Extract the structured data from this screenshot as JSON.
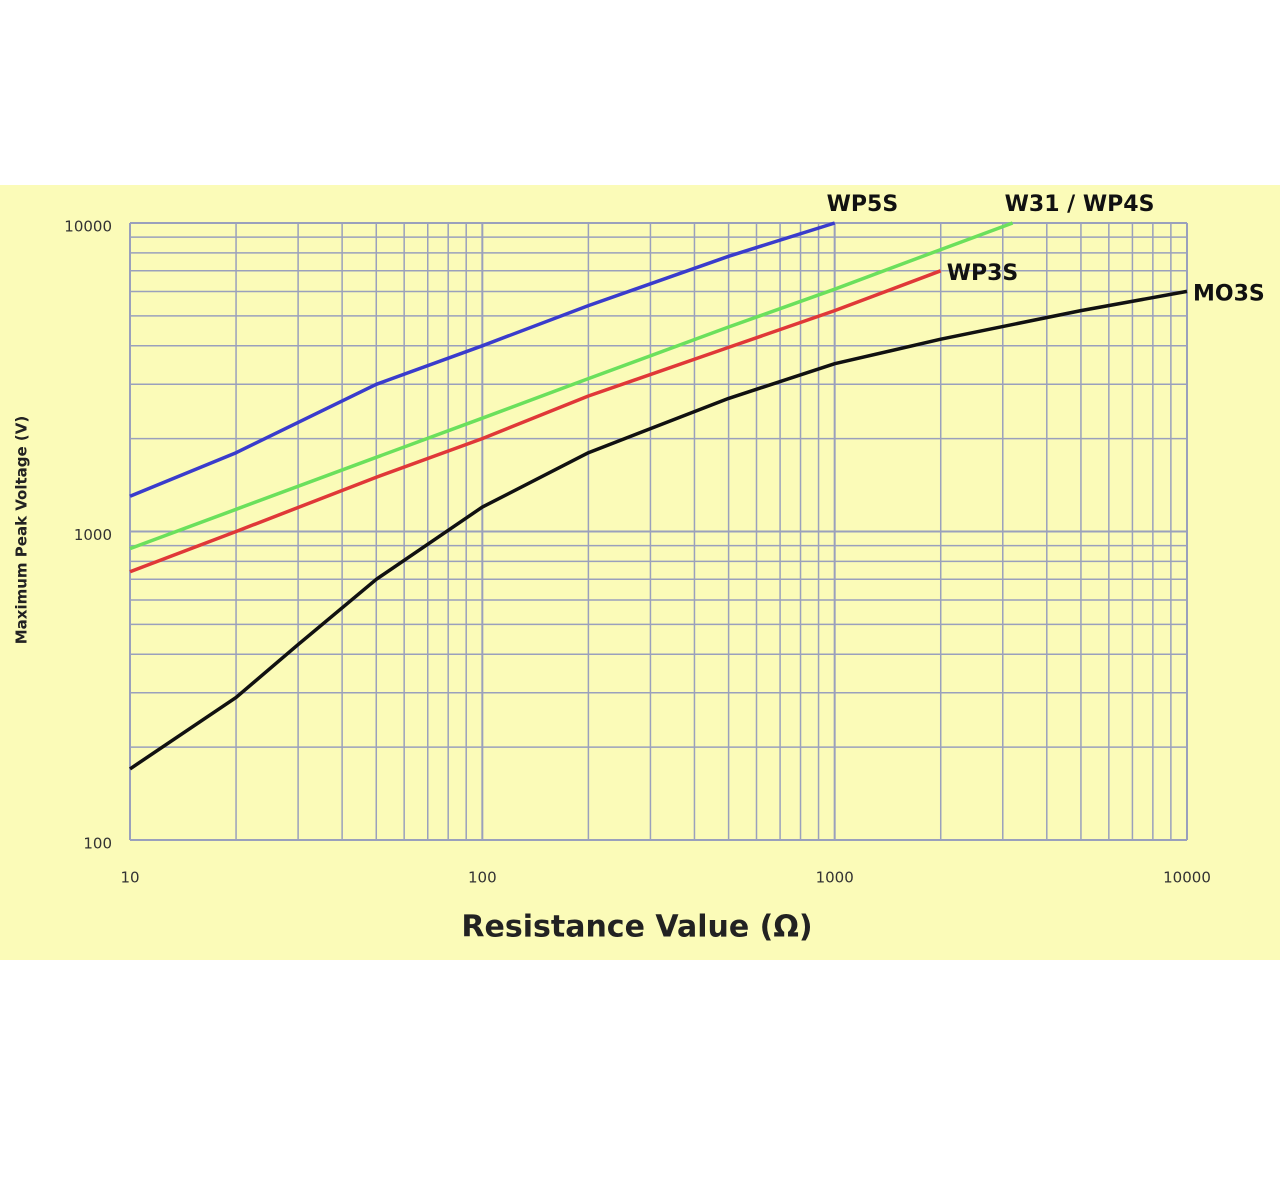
{
  "chart_data": {
    "type": "line",
    "x_label": "Resistance Value (Ω)",
    "y_label": "Maximum Peak Voltage (V)",
    "xscale": "log",
    "yscale": "log",
    "xlim": [
      10,
      10000
    ],
    "ylim": [
      100,
      10000
    ],
    "xticks": [
      10,
      100,
      1000,
      10000
    ],
    "yticks": [
      100,
      1000,
      10000
    ],
    "grid": true,
    "background": "#fbfbb8",
    "series": [
      {
        "name": "WP5S",
        "color": "#3a3ccc",
        "x": [
          10,
          20,
          50,
          100,
          200,
          500,
          1000
        ],
        "values": [
          1300,
          1800,
          3000,
          4000,
          5400,
          7800,
          10000
        ]
      },
      {
        "name": "W31 / WP4S",
        "color": "#6be05c",
        "x": [
          10,
          20,
          50,
          100,
          200,
          500,
          1000,
          2000,
          3200
        ],
        "values": [
          880,
          1180,
          1740,
          2330,
          3130,
          4600,
          6100,
          8200,
          10000
        ]
      },
      {
        "name": "WP3S",
        "color": "#e03838",
        "x": [
          10,
          20,
          50,
          100,
          200,
          500,
          1000,
          2000
        ],
        "values": [
          740,
          1000,
          1500,
          2000,
          2750,
          3950,
          5200,
          7000
        ]
      },
      {
        "name": "MO3S",
        "color": "#111111",
        "x": [
          10,
          20,
          30,
          50,
          100,
          200,
          500,
          1000,
          2000,
          5000,
          10000
        ],
        "values": [
          170,
          290,
          430,
          700,
          1200,
          1800,
          2700,
          3500,
          4200,
          5200,
          6000
        ]
      }
    ]
  }
}
